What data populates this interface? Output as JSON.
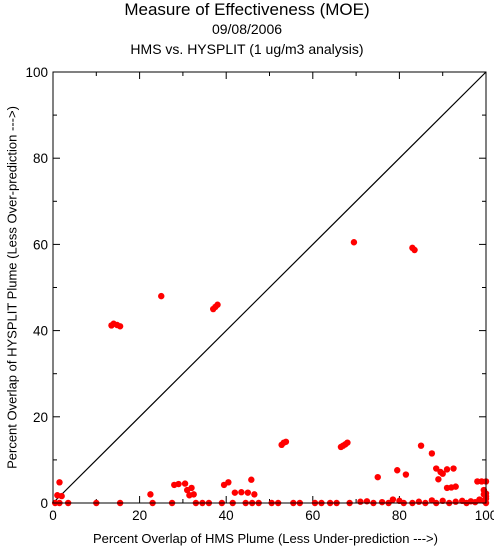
{
  "chart_data": {
    "type": "scatter",
    "title": "Measure of Effectiveness (MOE)",
    "subtitle_date": "09/08/2006",
    "subtitle_comparison": "HMS vs. HYSPLIT  (1 ug/m3 analysis)",
    "xlabel": "Percent Overlap of HMS Plume (Less Under-prediction --->)",
    "ylabel": "Percent Overlap of HYSPLIT Plume (Less Over-prediction --->)",
    "xlim": [
      0,
      100
    ],
    "ylim": [
      0,
      100
    ],
    "xticks": [
      0,
      20,
      40,
      60,
      80,
      100
    ],
    "yticks": [
      0,
      20,
      40,
      60,
      80,
      100
    ],
    "reference_line": {
      "from": [
        0,
        0
      ],
      "to": [
        100,
        100
      ],
      "color": "#000000"
    },
    "marker_color": "#ff0000",
    "points": [
      [
        69.5,
        60.5
      ],
      [
        83.0,
        59.2
      ],
      [
        83.5,
        58.7
      ],
      [
        25.0,
        48.0
      ],
      [
        37.0,
        45.0
      ],
      [
        37.5,
        45.5
      ],
      [
        38.0,
        46.0
      ],
      [
        13.5,
        41.2
      ],
      [
        14.0,
        41.6
      ],
      [
        14.8,
        41.3
      ],
      [
        15.5,
        41.0
      ],
      [
        52.8,
        13.5
      ],
      [
        53.3,
        14.0
      ],
      [
        53.8,
        14.2
      ],
      [
        66.5,
        13.0
      ],
      [
        67.0,
        13.3
      ],
      [
        67.5,
        13.6
      ],
      [
        68.0,
        14.0
      ],
      [
        85.0,
        13.3
      ],
      [
        87.5,
        11.5
      ],
      [
        88.5,
        8.0
      ],
      [
        89.5,
        7.2
      ],
      [
        90.0,
        6.8
      ],
      [
        91.0,
        7.8
      ],
      [
        92.5,
        8.0
      ],
      [
        79.5,
        7.6
      ],
      [
        81.5,
        6.6
      ],
      [
        89.0,
        5.5
      ],
      [
        75.0,
        6.0
      ],
      [
        98.0,
        5.0
      ],
      [
        99.0,
        5.0
      ],
      [
        100.0,
        5.0
      ],
      [
        91.0,
        3.5
      ],
      [
        92.0,
        3.6
      ],
      [
        93.0,
        3.8
      ],
      [
        99.5,
        3.0
      ],
      [
        1.5,
        4.8
      ],
      [
        1.0,
        1.8
      ],
      [
        2.0,
        1.6
      ],
      [
        28.0,
        4.2
      ],
      [
        29.0,
        4.4
      ],
      [
        30.5,
        4.5
      ],
      [
        31.0,
        3.0
      ],
      [
        32.0,
        3.5
      ],
      [
        31.5,
        1.8
      ],
      [
        32.5,
        2.0
      ],
      [
        39.5,
        4.2
      ],
      [
        40.5,
        4.8
      ],
      [
        42.0,
        2.4
      ],
      [
        43.5,
        2.5
      ],
      [
        45.0,
        2.4
      ],
      [
        45.8,
        5.4
      ],
      [
        46.5,
        2.0
      ],
      [
        22.5,
        2.0
      ],
      [
        100.0,
        2.2
      ],
      [
        99.5,
        2.0
      ],
      [
        100.0,
        1.5
      ],
      [
        0.5,
        0.0
      ],
      [
        1.5,
        0.0
      ],
      [
        3.5,
        0.0
      ],
      [
        10.0,
        0.0
      ],
      [
        15.5,
        0.0
      ],
      [
        23.0,
        0.0
      ],
      [
        27.5,
        0.0
      ],
      [
        33.0,
        0.0
      ],
      [
        34.5,
        0.0
      ],
      [
        36.0,
        0.0
      ],
      [
        39.0,
        0.0
      ],
      [
        41.5,
        0.0
      ],
      [
        44.5,
        0.0
      ],
      [
        46.0,
        0.0
      ],
      [
        47.5,
        0.0
      ],
      [
        50.5,
        0.0
      ],
      [
        52.0,
        0.0
      ],
      [
        55.5,
        0.0
      ],
      [
        57.0,
        0.0
      ],
      [
        60.5,
        0.0
      ],
      [
        62.0,
        0.0
      ],
      [
        64.0,
        0.0
      ],
      [
        65.5,
        0.0
      ],
      [
        68.5,
        0.0
      ],
      [
        71.0,
        0.3
      ],
      [
        72.5,
        0.4
      ],
      [
        74.0,
        0.0
      ],
      [
        76.0,
        0.2
      ],
      [
        77.5,
        0.0
      ],
      [
        78.5,
        0.8
      ],
      [
        80.0,
        0.5
      ],
      [
        81.0,
        0.0
      ],
      [
        83.0,
        0.0
      ],
      [
        84.5,
        0.3
      ],
      [
        86.0,
        0.0
      ],
      [
        87.5,
        0.6
      ],
      [
        88.5,
        0.0
      ],
      [
        90.0,
        0.5
      ],
      [
        91.5,
        0.0
      ],
      [
        93.0,
        0.3
      ],
      [
        94.5,
        0.5
      ],
      [
        95.5,
        0.0
      ],
      [
        96.5,
        0.4
      ],
      [
        97.5,
        0.2
      ],
      [
        98.5,
        0.8
      ],
      [
        99.5,
        0.5
      ],
      [
        100.0,
        0.0
      ],
      [
        100.0,
        1.0
      ]
    ]
  }
}
